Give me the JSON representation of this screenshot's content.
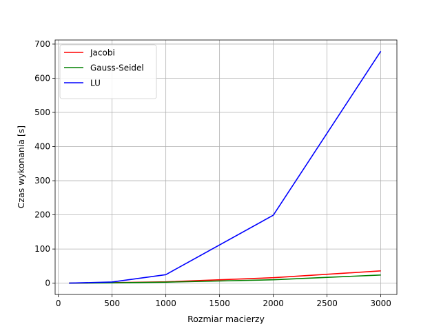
{
  "chart_data": {
    "type": "line",
    "xlabel": "Rozmiar macierzy",
    "ylabel": "Czas wykonania [s]",
    "xlim": [
      -30,
      3150
    ],
    "ylim": [
      -33,
      712
    ],
    "xticks": [
      0,
      500,
      1000,
      1500,
      2000,
      2500,
      3000
    ],
    "yticks": [
      0,
      100,
      200,
      300,
      400,
      500,
      600,
      700
    ],
    "grid": true,
    "legend_position": "top-left",
    "x": [
      100,
      500,
      1000,
      2000,
      3000
    ],
    "series": [
      {
        "name": "Jacobi",
        "color": "#ff0000",
        "values": [
          0.1,
          1.5,
          4,
          16,
          36
        ]
      },
      {
        "name": "Gauss-Seidel",
        "color": "#008000",
        "values": [
          0.1,
          1,
          3,
          10,
          24
        ]
      },
      {
        "name": "LU",
        "color": "#0000ff",
        "values": [
          0.1,
          3.5,
          25,
          199,
          679
        ]
      }
    ]
  }
}
